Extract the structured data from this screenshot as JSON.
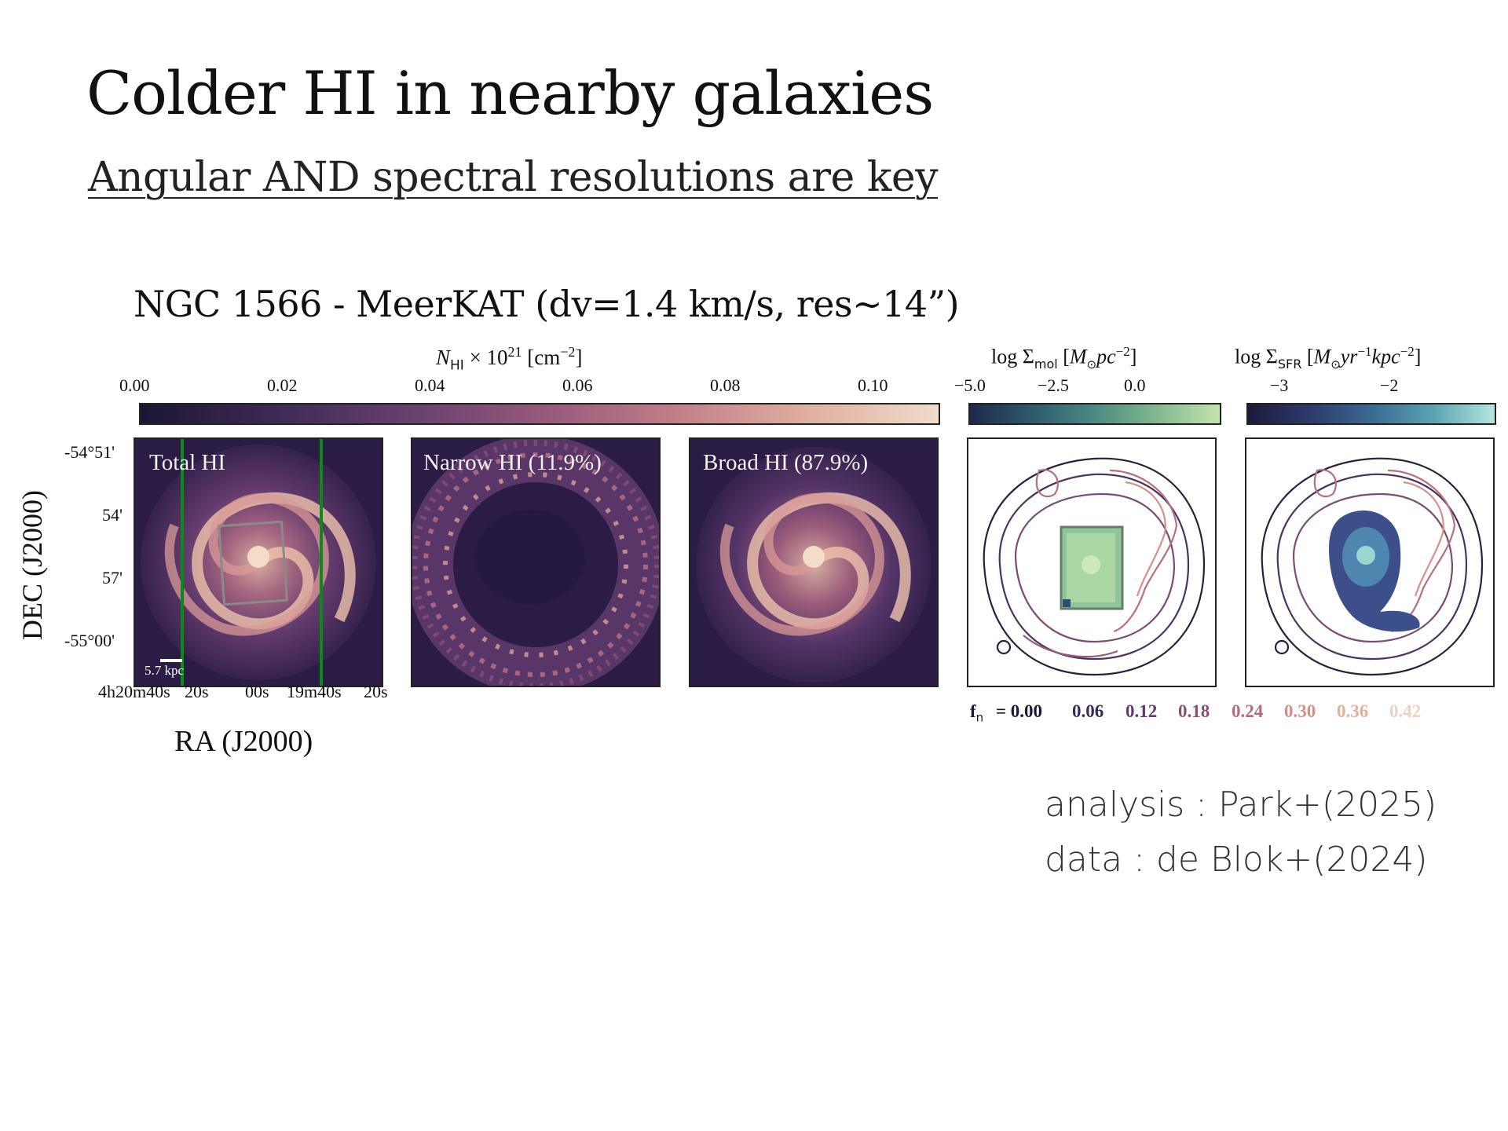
{
  "slide": {
    "title": "Colder HI in nearby galaxies",
    "subtitle": "Angular AND spectral resolutions are key",
    "figure_heading": "NGC 1566 - MeerKAT (dv=1.4 km/s, res~14”)"
  },
  "figure": {
    "colorbar_hi": {
      "label": "N_HI × 10^21 [cm^-2]",
      "ticks": [
        "0.00",
        "0.02",
        "0.04",
        "0.06",
        "0.08",
        "0.10"
      ]
    },
    "colorbar_mol": {
      "label": "log Σ_mol [M⊙pc^-2]",
      "ticks": [
        "−5.0",
        "−2.5",
        "0.0"
      ]
    },
    "colorbar_sfr": {
      "label": "log Σ_SFR [M⊙yr^-1kpc^-2]",
      "ticks": [
        "−3",
        "−2"
      ]
    },
    "panels": {
      "total": "Total HI",
      "narrow": "Narrow HI (11.9%)",
      "broad": "Broad HI (87.9%)"
    },
    "scalebar": "5.7 kpc",
    "dec_axis": {
      "label": "DEC (J2000)",
      "ticks": [
        "-54°51'",
        "54'",
        "57'",
        "-55°00'"
      ]
    },
    "ra_axis": {
      "label": "RA (J2000)",
      "ticks": [
        "4h20m40s",
        "20s",
        "00s",
        "19m40s",
        "20s"
      ]
    },
    "contour_legend": {
      "prefix": "f",
      "subscript": "n",
      "equals": "= 0.00",
      "levels": [
        "0.06",
        "0.12",
        "0.18",
        "0.24",
        "0.30",
        "0.36",
        "0.42"
      ],
      "colors": [
        "#1f1535",
        "#3a2a5a",
        "#5f3b6c",
        "#8a4f73",
        "#b56a78",
        "#d48d86",
        "#e2b09e",
        "#ead3c4"
      ]
    }
  },
  "credits": {
    "analysis": "analysis : Park+(2025)",
    "data": "data : de Blok+(2024)"
  }
}
